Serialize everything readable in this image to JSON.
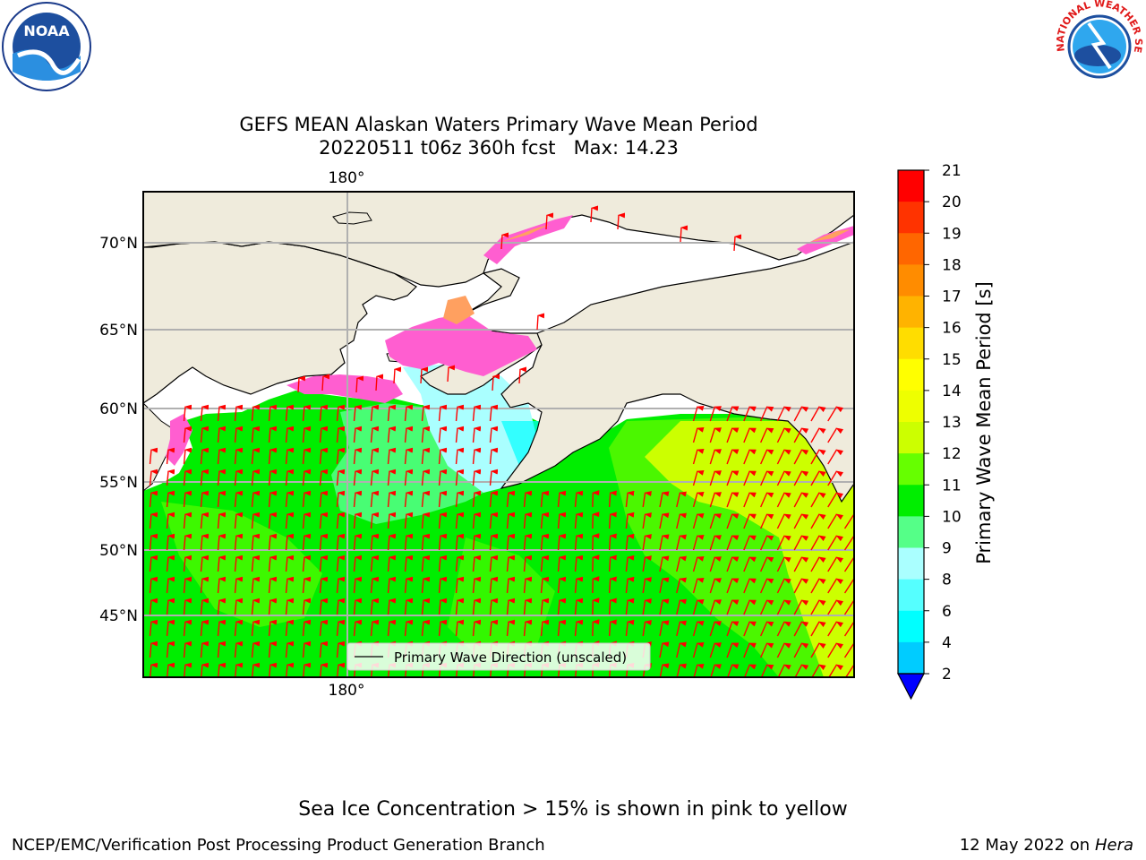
{
  "logos": {
    "noaa": "NOAA",
    "nws": "NATIONAL WEATHER SERVICE"
  },
  "title": {
    "line1": "GEFS MEAN Alaskan Waters Primary Wave Mean Period",
    "line2": "20220511 t06z 360h fcst   Max: 14.23"
  },
  "map": {
    "lat_labels": [
      "70°N",
      "65°N",
      "60°N",
      "55°N",
      "50°N",
      "45°N"
    ],
    "lon_label_top": "180°",
    "lon_label_bottom": "180°",
    "legend_label": "Primary Wave Direction (unscaled)",
    "colors": {
      "land": "#efebdc",
      "ice_pink": "#ff5ed0",
      "ice_orange": "#ffa060",
      "arrow": "#ff0000",
      "grid": "#b0b0b0"
    }
  },
  "colorbar": {
    "label": "Primary Wave Mean Period [s]",
    "ticks": [
      "21",
      "20",
      "19",
      "18",
      "17",
      "16",
      "15",
      "14",
      "13",
      "12",
      "11",
      "10",
      "9",
      "8",
      "6",
      "4",
      "2"
    ],
    "colors": [
      "#ff0000",
      "#ff3300",
      "#ff6600",
      "#ff8c00",
      "#ffb300",
      "#ffdd00",
      "#ffff00",
      "#eeff00",
      "#ccff00",
      "#66ff00",
      "#00ee00",
      "#55ff88",
      "#aaffff",
      "#55ffff",
      "#00ffff",
      "#00ccff",
      "#0066ff"
    ],
    "extend_color": "#0000ff"
  },
  "footer": {
    "ice_note": "Sea Ice Concentration > 15% is shown in pink to yellow",
    "branch": "NCEP/EMC/Verification Post Processing Product Generation Branch",
    "date": "12 May 2022 on",
    "platform": "Hera"
  }
}
